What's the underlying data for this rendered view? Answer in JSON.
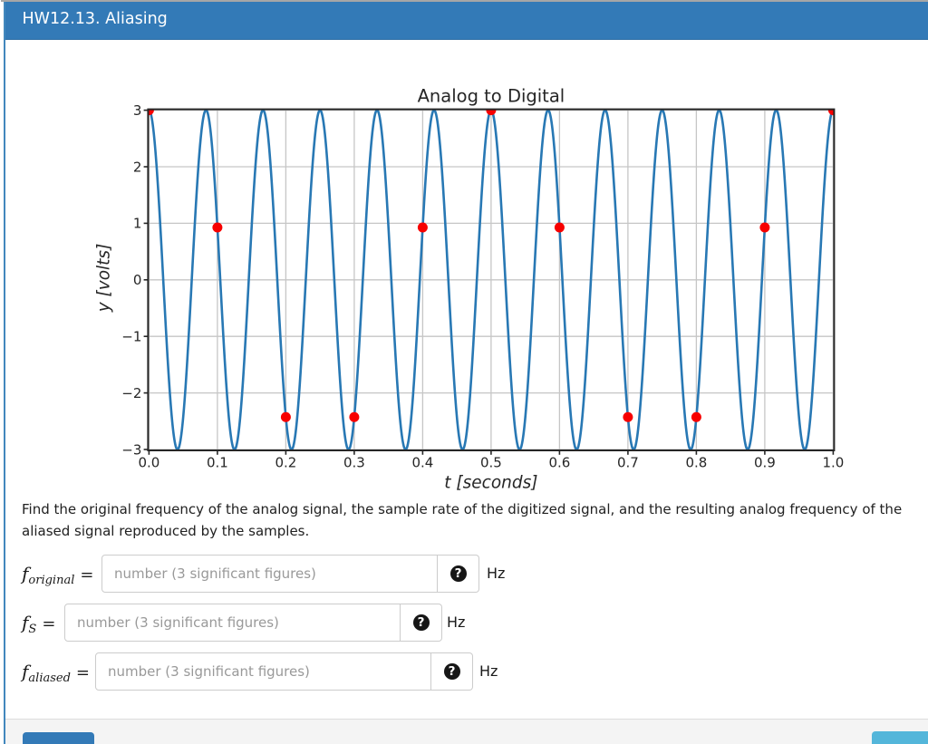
{
  "header": {
    "title": "HW12.13. Aliasing"
  },
  "chart_data": {
    "type": "line",
    "title": "Analog to Digital",
    "xlabel": "t [seconds]",
    "ylabel": "y [volts]",
    "xlim": [
      0.0,
      1.0
    ],
    "ylim": [
      -3,
      3
    ],
    "x_ticks": [
      0.0,
      0.1,
      0.2,
      0.3,
      0.4,
      0.5,
      0.6,
      0.7,
      0.8,
      0.9,
      1.0
    ],
    "x_tick_labels": [
      "0.0",
      "0.1",
      "0.2",
      "0.3",
      "0.4",
      "0.5",
      "0.6",
      "0.7",
      "0.8",
      "0.9",
      "1.0"
    ],
    "y_ticks": [
      -3,
      -2,
      -1,
      0,
      1,
      2,
      3
    ],
    "y_tick_labels": [
      "−3",
      "−2",
      "−1",
      "0",
      "1",
      "2",
      "3"
    ],
    "grid": true,
    "legend": false,
    "series": [
      {
        "name": "analog signal",
        "type": "line",
        "color": "#2878b4",
        "function": "y(t) = 3*cos(2*pi*12*t)",
        "amplitude_volts": 3,
        "frequency_hz": 12,
        "phase": 0
      },
      {
        "name": "samples",
        "type": "scatter",
        "color": "#f70000",
        "sample_rate_hz": 10,
        "x": [
          0.0,
          0.1,
          0.2,
          0.3,
          0.4,
          0.5,
          0.6,
          0.7,
          0.8,
          0.9,
          1.0
        ],
        "y": [
          3,
          0.927,
          -2.427,
          -2.427,
          0.927,
          3,
          0.927,
          -2.427,
          -2.427,
          0.927,
          3
        ]
      }
    ]
  },
  "problem": {
    "prompt": "Find the original frequency of the analog signal, the sample rate of the digitized signal, and the resulting analog frequency of the aliased signal reproduced by the samples."
  },
  "form": {
    "help_glyph": "?",
    "rows": [
      {
        "symbol": "f",
        "subscript": "original",
        "equals": "=",
        "placeholder": "number (3 significant figures)",
        "unit": "Hz"
      },
      {
        "symbol": "f",
        "subscript": "S",
        "equals": "=",
        "placeholder": "number (3 significant figures)",
        "unit": "Hz"
      },
      {
        "symbol": "f",
        "subscript": "aliased",
        "equals": "=",
        "placeholder": "number (3 significant figures)",
        "unit": "Hz"
      }
    ]
  }
}
